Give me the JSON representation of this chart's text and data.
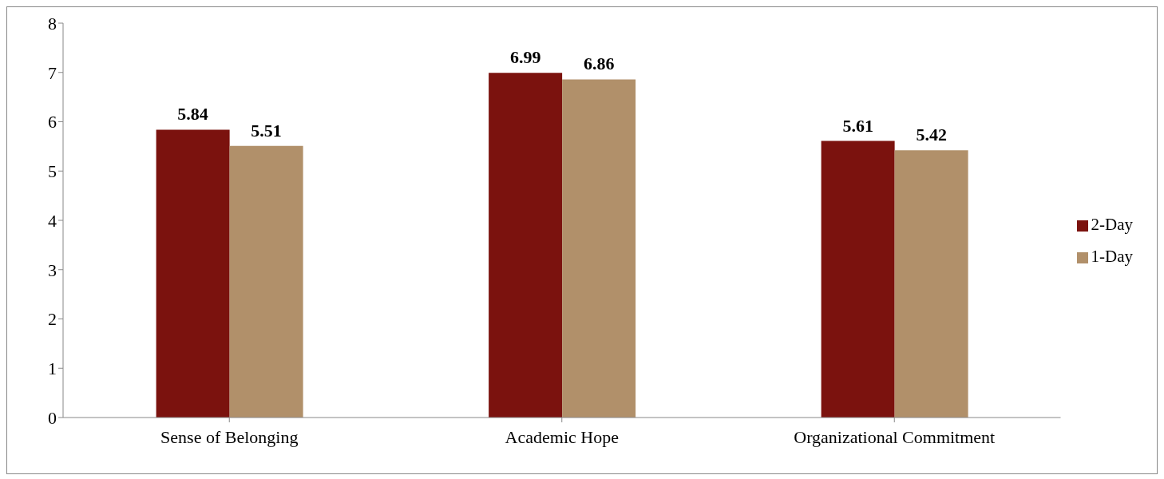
{
  "chart_data": {
    "type": "bar",
    "categories": [
      "Sense of Belonging",
      "Academic Hope",
      "Organizational Commitment"
    ],
    "series": [
      {
        "name": "2-Day",
        "color": "#7b120e",
        "values": [
          5.84,
          6.99,
          5.61
        ]
      },
      {
        "name": "1-Day",
        "color": "#b1906a",
        "values": [
          5.51,
          6.86,
          5.42
        ]
      }
    ],
    "ylim": [
      0,
      8
    ],
    "yticks": [
      0,
      1,
      2,
      3,
      4,
      5,
      6,
      7,
      8
    ],
    "grid": false,
    "legend": "right",
    "data_labels": true
  }
}
